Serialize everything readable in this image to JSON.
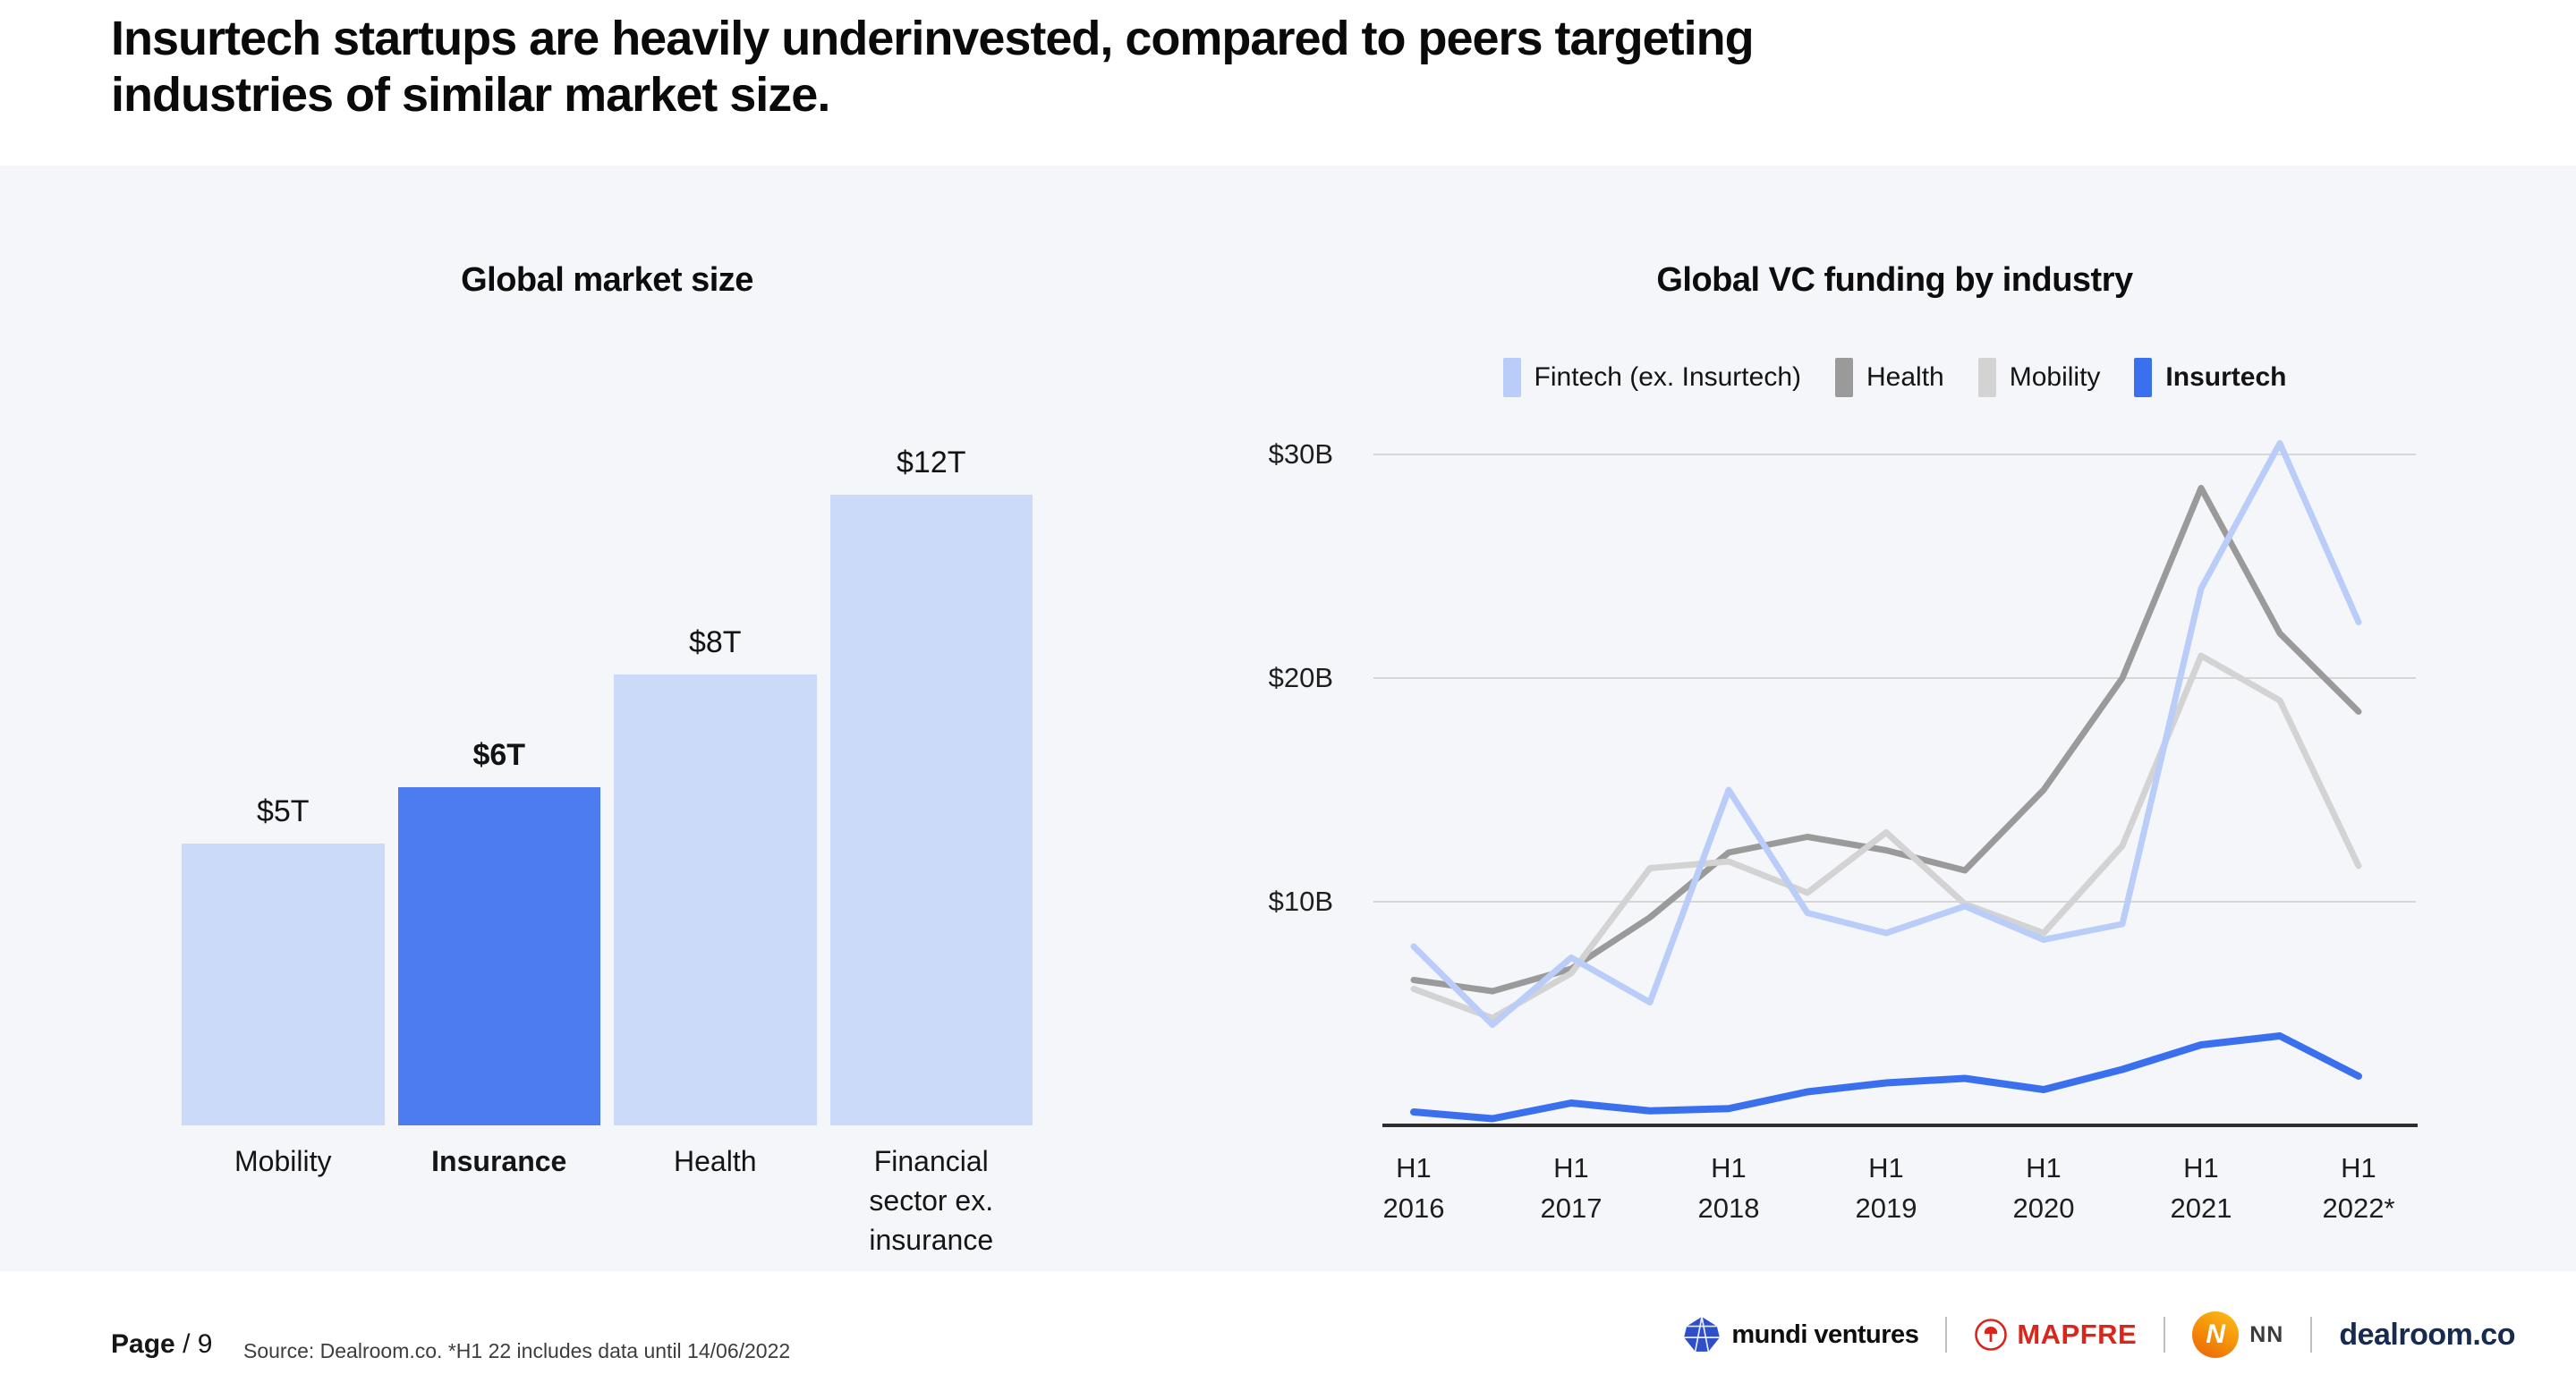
{
  "header": {
    "title_line1": "Insurtech startups are heavily underinvested, compared to peers targeting",
    "title_line2": "industries of similar market size."
  },
  "chart_data": [
    {
      "type": "bar",
      "title": "Global market size",
      "categories": [
        "Mobility",
        "Insurance",
        "Health",
        "Financial sector ex. insurance"
      ],
      "values": [
        5,
        6,
        8,
        12
      ],
      "value_labels": [
        "$5T",
        "$6T",
        "$8T",
        "$12T"
      ],
      "highlight_index": 1,
      "ylim": [
        0,
        12
      ],
      "grid": false,
      "bar_color": "#cbdaf8",
      "highlight_color": "#4d7cf1"
    },
    {
      "type": "line",
      "title": "Global VC funding by industry",
      "x": [
        "H1 2016",
        "H2 2016",
        "H1 2017",
        "H2 2017",
        "H1 2018",
        "H2 2018",
        "H1 2019",
        "H2 2019",
        "H1 2020",
        "H2 2020",
        "H1 2021",
        "H2 2021",
        "H1 2022*"
      ],
      "x_axis_labels_shown": [
        "H1 2016",
        "H1 2017",
        "H1 2018",
        "H1 2019",
        "H1 2020",
        "H1 2021",
        "H1 2022*"
      ],
      "yticks": [
        {
          "value": 10,
          "label": "$10B"
        },
        {
          "value": 20,
          "label": "$20B"
        },
        {
          "value": 30,
          "label": "$30B"
        }
      ],
      "ylim": [
        0,
        32
      ],
      "grid": "horizontal",
      "legend_position": "top",
      "series": [
        {
          "name": "Fintech (ex. Insurtech)",
          "color": "#b9cdf8",
          "bold": false,
          "values": [
            8,
            4.5,
            7.5,
            5.5,
            15,
            9.5,
            8.6,
            9.8,
            8.3,
            9,
            24,
            30.5,
            22.5
          ]
        },
        {
          "name": "Health",
          "color": "#9a9a9a",
          "bold": false,
          "values": [
            6.5,
            6,
            7,
            9.3,
            12.2,
            12.9,
            12.3,
            11.4,
            15,
            20,
            28.5,
            22,
            18.5
          ]
        },
        {
          "name": "Mobility",
          "color": "#d3d3d3",
          "bold": false,
          "values": [
            6.1,
            4.8,
            6.8,
            11.5,
            11.8,
            10.4,
            13.1,
            9.9,
            8.6,
            12.5,
            21,
            19,
            11.6
          ]
        },
        {
          "name": "Insurtech",
          "color": "#3a70ee",
          "bold": true,
          "values": [
            0.6,
            0.3,
            1,
            0.65,
            0.75,
            1.5,
            1.9,
            2.1,
            1.6,
            2.5,
            3.6,
            4,
            2.2
          ]
        }
      ]
    }
  ],
  "footer": {
    "page_label": "Page",
    "page_suffix": "/ 9",
    "source_note": "Source: Dealroom.co.  *H1 22 includes data until 14/06/2022",
    "partners": {
      "mundi": "mundi ventures",
      "mapfre": "MAPFRE",
      "nn_monogram": "N",
      "nn": "NN",
      "dealroom": "dealroom.co"
    }
  },
  "colors": {
    "panel_bg": "#f4f6fa",
    "grid_line": "#d6d6d6",
    "axis_line": "#2e2e2e",
    "accent_blue": "#3a70ee",
    "bar_light_blue": "#cbdaf8",
    "bar_highlight_blue": "#4d7cf1",
    "mapfre_red": "#d9261c",
    "nn_orange": "#ef7d05",
    "dealroom_navy": "#182a4e",
    "mundi_blue": "#2f4ec9"
  }
}
